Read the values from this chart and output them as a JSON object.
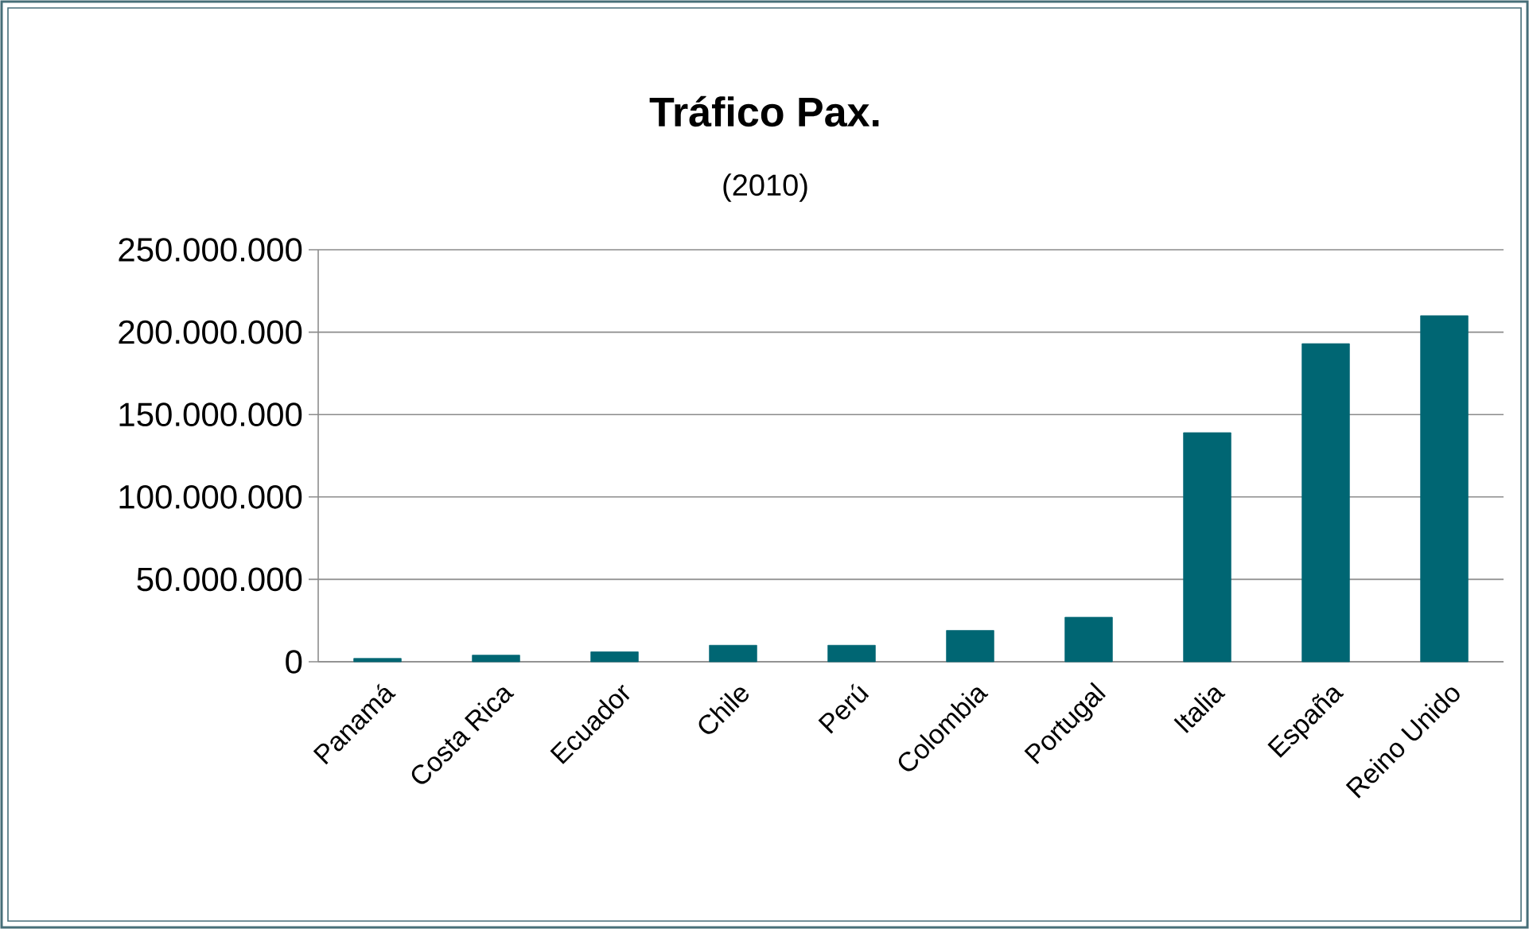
{
  "chart_data": {
    "type": "bar",
    "title": "Tráfico Pax.",
    "subtitle": "(2010)",
    "categories": [
      "Panamá",
      "Costa Rica",
      "Ecuador",
      "Chile",
      "Perú",
      "Colombia",
      "Portugal",
      "Italia",
      "España",
      "Reino Unido"
    ],
    "values": [
      2000000,
      4000000,
      6000000,
      10000000,
      10000000,
      19000000,
      27000000,
      139000000,
      193000000,
      210000000
    ],
    "color": "#006673",
    "ylim": [
      0,
      250000000
    ],
    "yticks": [
      {
        "value": 0,
        "label": "0"
      },
      {
        "value": 50000000,
        "label": "50.000.000"
      },
      {
        "value": 100000000,
        "label": "100.000.000"
      },
      {
        "value": 150000000,
        "label": "150.000.000"
      },
      {
        "value": 200000000,
        "label": "200.000.000"
      },
      {
        "value": 250000000,
        "label": "250.000.000"
      }
    ],
    "grid": "y"
  }
}
